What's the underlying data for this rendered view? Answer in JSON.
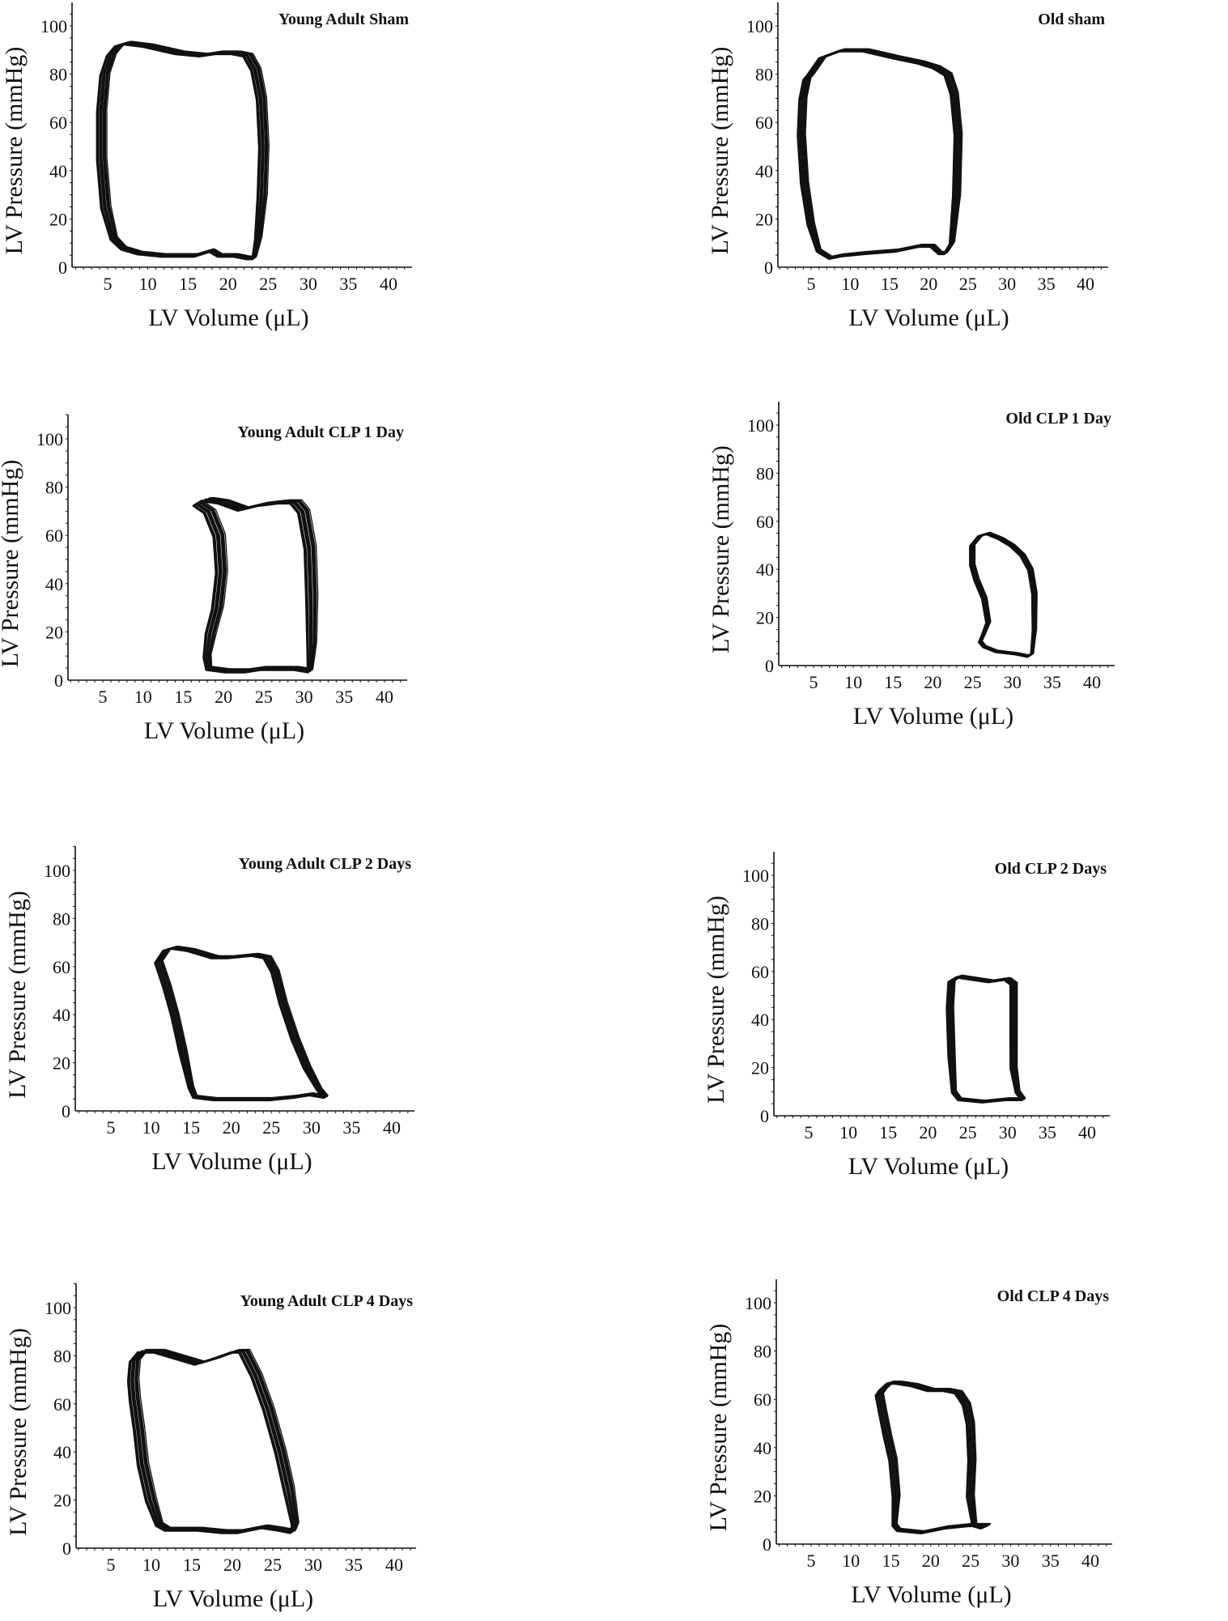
{
  "figure": {
    "x_axis_label": "LV Volume (μL)",
    "y_axis_label": "LV Pressure (mmHg)",
    "x_ticks": [
      5,
      10,
      15,
      20,
      25,
      30,
      35,
      40
    ],
    "y_ticks": [
      0,
      20,
      40,
      60,
      80,
      100
    ],
    "line_color": "#111111"
  },
  "chart_data": [
    {
      "type": "line",
      "title": "Young Adult Sham",
      "xlabel": "LV Volume (μL)",
      "ylabel": "LV Pressure (mmHg)",
      "xlim": [
        0.5,
        43
      ],
      "ylim": [
        0,
        110
      ],
      "x_ticks": [
        5,
        10,
        15,
        20,
        25,
        30,
        35,
        40
      ],
      "y_ticks": [
        0,
        20,
        40,
        60,
        80,
        100
      ],
      "loop": {
        "vol": [
          5.5,
          6.5,
          7.5,
          10,
          14,
          17,
          19,
          21,
          22.5,
          23.5,
          24.2,
          24.5,
          24.3,
          23.8,
          23.3,
          22.5,
          21,
          19,
          18,
          16,
          12,
          9,
          7,
          5.8,
          4.8,
          4.3,
          4.3,
          4.7,
          5.5
        ],
        "pres": [
          88,
          92,
          93,
          92,
          89,
          88,
          89,
          89,
          88,
          82,
          70,
          50,
          30,
          12,
          4,
          4,
          5,
          5,
          7,
          5,
          5,
          6,
          8,
          12,
          25,
          45,
          65,
          80,
          88
        ]
      },
      "spread": 1.0
    },
    {
      "type": "line",
      "title": "Old sham",
      "xlabel": "LV Volume (μL)",
      "ylabel": "LV Pressure (mmHg)",
      "xlim": [
        0.5,
        43
      ],
      "ylim": [
        0,
        110
      ],
      "x_ticks": [
        5,
        10,
        15,
        20,
        25,
        30,
        35,
        40
      ],
      "y_ticks": [
        0,
        20,
        40,
        60,
        80,
        100
      ],
      "loop": {
        "vol": [
          5,
          6.5,
          9,
          12,
          16,
          19,
          21,
          22.5,
          23.3,
          23.8,
          23.6,
          23,
          22.2,
          21.5,
          20.5,
          19,
          16,
          12,
          9,
          7.5,
          6,
          5,
          4.2,
          3.8,
          4,
          4.5
        ],
        "pres": [
          80,
          87,
          90,
          90,
          87,
          85,
          83,
          80,
          72,
          55,
          30,
          10,
          6,
          6,
          9,
          9,
          7,
          6,
          5,
          4,
          7,
          18,
          35,
          55,
          70,
          78
        ]
      },
      "spread": 0.8
    },
    {
      "type": "line",
      "title": "Young Adult CLP 1 Day",
      "xlabel": "LV Volume (μL)",
      "ylabel": "LV Pressure (mmHg)",
      "xlim": [
        0.5,
        43
      ],
      "ylim": [
        0,
        110
      ],
      "x_ticks": [
        5,
        10,
        15,
        20,
        25,
        30,
        35,
        40
      ],
      "y_ticks": [
        0,
        20,
        40,
        60,
        80,
        100
      ],
      "loop": {
        "vol": [
          17,
          18,
          20,
          22.5,
          25,
          27.5,
          29,
          30,
          30.8,
          31,
          31,
          30.8,
          29,
          27,
          25,
          23,
          20.5,
          18.2,
          18,
          18.5,
          19.3,
          19.8,
          19.5,
          18.3,
          17
        ],
        "pres": [
          73,
          75,
          74,
          71,
          73,
          74,
          74,
          70,
          55,
          35,
          15,
          4,
          5,
          5,
          5,
          4,
          4,
          5,
          10,
          20,
          30,
          45,
          60,
          70,
          73
        ]
      },
      "spread": 1.2
    },
    {
      "type": "line",
      "title": "Old CLP 1 Day",
      "xlabel": "LV Volume (μL)",
      "ylabel": "LV Pressure (mmHg)",
      "xlim": [
        0.5,
        43
      ],
      "ylim": [
        0,
        110
      ],
      "x_ticks": [
        5,
        10,
        15,
        20,
        25,
        30,
        35,
        40
      ],
      "y_ticks": [
        0,
        20,
        40,
        60,
        80,
        100
      ],
      "loop": {
        "vol": [
          25,
          26,
          27,
          28.5,
          30,
          31.3,
          32.3,
          32.8,
          32.8,
          32.5,
          32,
          30.5,
          28,
          26.5,
          26,
          26.4,
          27,
          26.5,
          25.5,
          25,
          25
        ],
        "pres": [
          50,
          54,
          55,
          53,
          50,
          46,
          40,
          30,
          15,
          5,
          4,
          5,
          6,
          8,
          10,
          13,
          18,
          28,
          36,
          42,
          50
        ]
      },
      "spread": 0.5
    },
    {
      "type": "line",
      "title": "Young Adult CLP 2 Days",
      "xlabel": "LV Volume (μL)",
      "ylabel": "LV Pressure (mmHg)",
      "xlim": [
        0.5,
        43
      ],
      "ylim": [
        0,
        110
      ],
      "x_ticks": [
        5,
        10,
        15,
        20,
        25,
        30,
        35,
        40
      ],
      "y_ticks": [
        0,
        20,
        40,
        60,
        80,
        100
      ],
      "loop": {
        "vol": [
          11,
          12,
          13,
          15,
          18,
          20,
          23,
          24.5,
          25.5,
          26.5,
          28,
          29.5,
          31,
          31.8,
          30,
          28,
          25,
          21,
          18,
          15.5,
          15,
          14,
          13,
          12,
          11
        ],
        "pres": [
          62,
          67,
          68,
          67,
          64,
          64,
          65,
          64,
          58,
          45,
          30,
          18,
          9,
          6,
          7,
          6,
          5,
          5,
          5,
          6,
          10,
          25,
          40,
          52,
          62
        ]
      },
      "spread": 0.8
    },
    {
      "type": "line",
      "title": "Old CLP 2 Days",
      "xlabel": "LV Volume (μL)",
      "ylabel": "LV Pressure (mmHg)",
      "xlim": [
        0.5,
        43
      ],
      "ylim": [
        0,
        110
      ],
      "x_ticks": [
        5,
        10,
        15,
        20,
        25,
        30,
        35,
        40
      ],
      "y_ticks": [
        0,
        20,
        40,
        60,
        80,
        100
      ],
      "loop": {
        "vol": [
          23,
          24,
          26,
          28,
          30,
          30.8,
          30.8,
          30.8,
          31.3,
          32,
          30,
          27,
          24,
          23.3,
          23,
          22.8,
          23
        ],
        "pres": [
          56,
          58,
          57,
          56,
          57,
          55,
          40,
          20,
          10,
          7,
          7,
          6,
          7,
          10,
          25,
          45,
          56
        ]
      },
      "spread": 0.7
    },
    {
      "type": "line",
      "title": "Young Adult CLP 4 Days",
      "xlabel": "LV Volume (μL)",
      "ylabel": "LV Pressure (mmHg)",
      "xlim": [
        0.5,
        43
      ],
      "ylim": [
        0,
        110
      ],
      "x_ticks": [
        5,
        10,
        15,
        20,
        25,
        30,
        35,
        40
      ],
      "y_ticks": [
        0,
        20,
        40,
        60,
        80,
        100
      ],
      "loop": {
        "vol": [
          8,
          9,
          11,
          14,
          16,
          18,
          20.5,
          21.5,
          23,
          24.5,
          26,
          27,
          27.8,
          27.5,
          26,
          24,
          21,
          19,
          16,
          12,
          11,
          10,
          9,
          8.5,
          8,
          7.8,
          8
        ],
        "pres": [
          78,
          82,
          82,
          79,
          77,
          79,
          82,
          82,
          72,
          58,
          40,
          25,
          10,
          7,
          8,
          9,
          7,
          7,
          8,
          8,
          10,
          20,
          35,
          50,
          62,
          70,
          78
        ]
      },
      "spread": 1.1
    },
    {
      "type": "line",
      "title": "Old CLP 4 Days",
      "xlabel": "LV Volume (μL)",
      "ylabel": "LV Pressure (mmHg)",
      "xlim": [
        0.5,
        43
      ],
      "ylim": [
        0,
        110
      ],
      "x_ticks": [
        5,
        10,
        15,
        20,
        25,
        30,
        35,
        40
      ],
      "y_ticks": [
        0,
        20,
        40,
        60,
        80,
        100
      ],
      "loop": {
        "vol": [
          14,
          15,
          16,
          18,
          20,
          22,
          23.5,
          24.5,
          25,
          25.2,
          25,
          25.5,
          26.5,
          27.2,
          25,
          22,
          19,
          16,
          15.5,
          15.7,
          15.3,
          14.6,
          14,
          13.6,
          14
        ],
        "pres": [
          64,
          67,
          67,
          66,
          64,
          64,
          63,
          58,
          50,
          35,
          20,
          8,
          7,
          8,
          8,
          7,
          5,
          6,
          8,
          20,
          35,
          45,
          55,
          62,
          64
        ]
      },
      "spread": 0.8
    }
  ],
  "panels": [
    {
      "title": "Young Adult Sham",
      "x_axis_label": "LV Volume (μL)",
      "y_axis_label": "LV Pressure (mmHg)"
    },
    {
      "title": "Old sham",
      "x_axis_label": "LV Volume (μL)",
      "y_axis_label": "LV Pressure (mmHg)"
    },
    {
      "title": "Young Adult CLP 1 Day",
      "x_axis_label": "LV Volume (μL)",
      "y_axis_label": "LV Pressure (mmHg)"
    },
    {
      "title": "Old CLP 1 Day",
      "x_axis_label": "LV Volume (μL)",
      "y_axis_label": "LV Pressure (mmHg)"
    },
    {
      "title": "Young Adult CLP 2 Days",
      "x_axis_label": "LV Volume (μL)",
      "y_axis_label": "LV Pressure (mmHg)"
    },
    {
      "title": "Old CLP 2 Days",
      "x_axis_label": "LV Volume (μL)",
      "y_axis_label": "LV Pressure (mmHg)"
    },
    {
      "title": "Young Adult CLP 4 Days",
      "x_axis_label": "LV Volume (μL)",
      "y_axis_label": "LV Pressure (mmHg)"
    },
    {
      "title": "Old CLP 4 Days",
      "x_axis_label": "LV Volume (μL)",
      "y_axis_label": "LV Pressure (mmHg)"
    }
  ]
}
